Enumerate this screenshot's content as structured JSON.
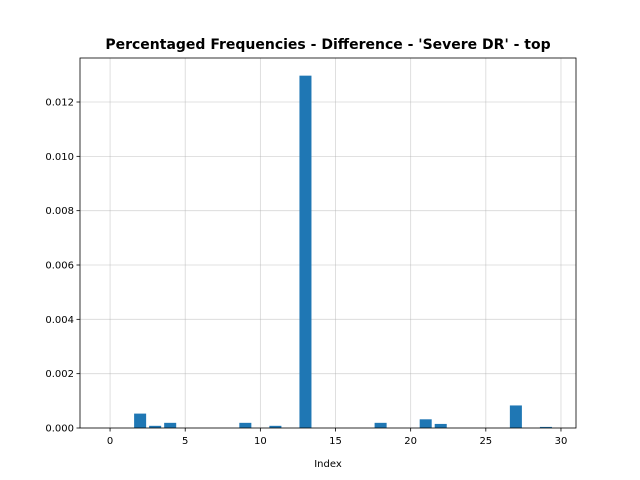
{
  "chart_data": {
    "type": "bar",
    "title": "Percentaged Frequencies - Difference - 'Severe DR' - top",
    "xlabel": "Index",
    "ylabel": "",
    "x": [
      2,
      3,
      4,
      9,
      11,
      13,
      18,
      21,
      22,
      27,
      29
    ],
    "values": [
      0.00053,
      8e-05,
      0.00019,
      0.00019,
      8e-05,
      0.01297,
      0.00019,
      0.00032,
      0.00015,
      0.00083,
      4e-05
    ],
    "xlim": [
      -2.0,
      31.0
    ],
    "ylim": [
      0.0,
      0.01362
    ],
    "xticks": [
      0,
      5,
      10,
      15,
      20,
      25,
      30
    ],
    "yticks": [
      0.0,
      0.002,
      0.004,
      0.006,
      0.008,
      0.01,
      0.012
    ],
    "xtick_labels": [
      "0",
      "5",
      "10",
      "15",
      "20",
      "25",
      "30"
    ],
    "ytick_labels": [
      "0.000",
      "0.002",
      "0.004",
      "0.006",
      "0.008",
      "0.010",
      "0.012"
    ],
    "bar_color": "#1f77b4",
    "grid": true
  }
}
